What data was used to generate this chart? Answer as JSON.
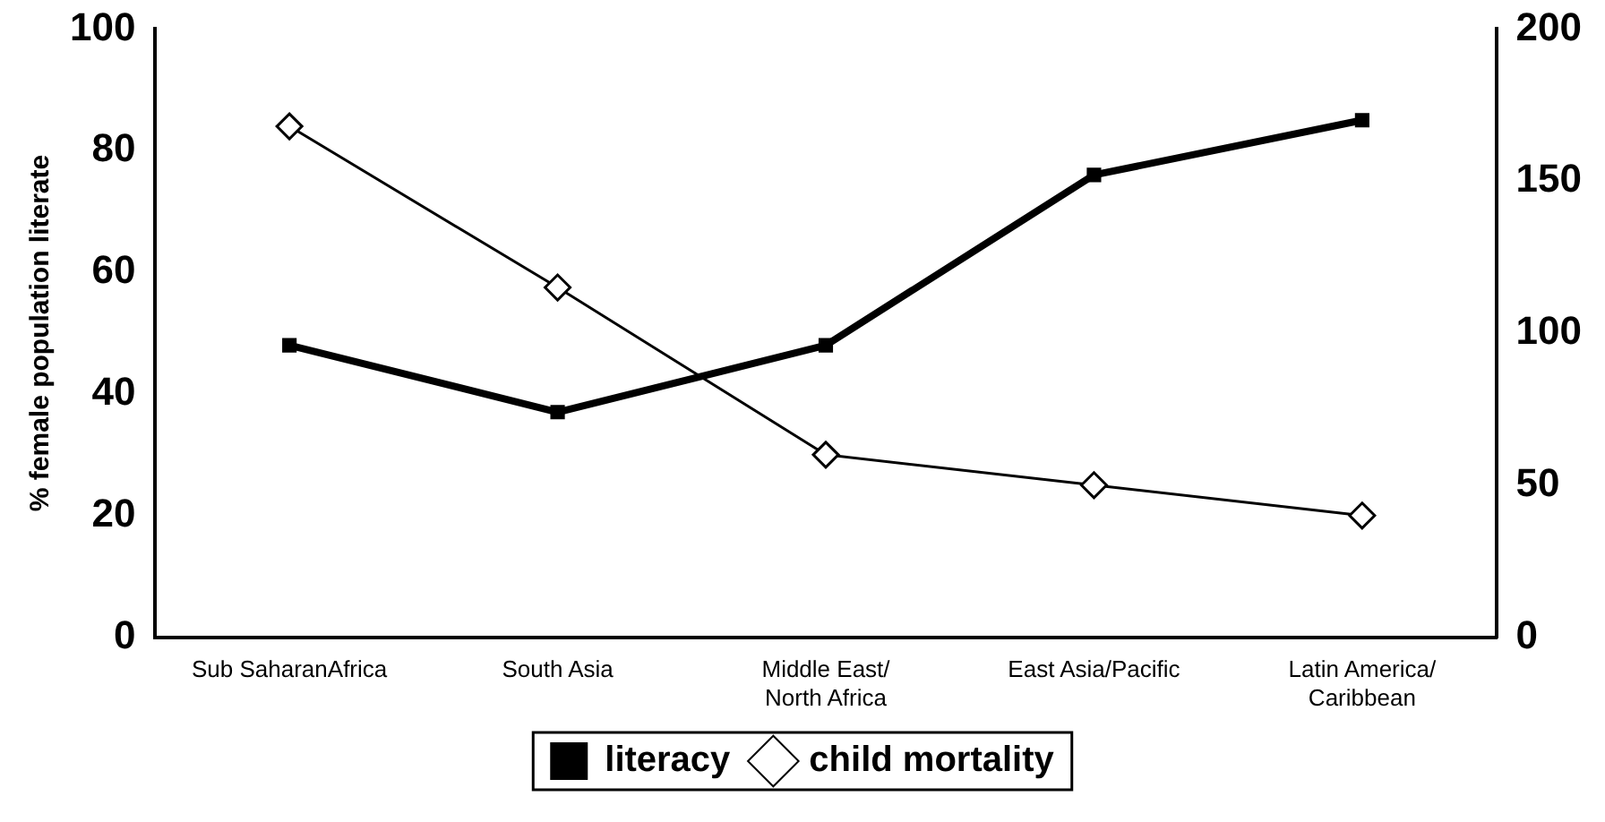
{
  "chart_data": {
    "type": "line",
    "ylabel": "% female population literate",
    "categories": [
      "Sub SaharanAfrica",
      "South Asia",
      "Middle East/\nNorth Africa",
      "East Asia/Pacific",
      "Latin America/\nCaribbean"
    ],
    "series": [
      {
        "name": "literacy",
        "color": "#000000",
        "marker": "square",
        "values": [
          48,
          37,
          48,
          76,
          85
        ]
      },
      {
        "name": "child mortality",
        "color": "#000000",
        "marker": "diamond",
        "axis": "y2",
        "values": [
          168,
          115,
          60,
          50,
          40
        ]
      }
    ],
    "ylim": [
      0,
      100
    ],
    "yticks": [
      0,
      20,
      40,
      60,
      80,
      100
    ],
    "y2lim": [
      0,
      200
    ],
    "y2ticks": [
      0,
      50,
      100,
      150,
      200
    ],
    "grid": false,
    "legend": "bottom"
  }
}
